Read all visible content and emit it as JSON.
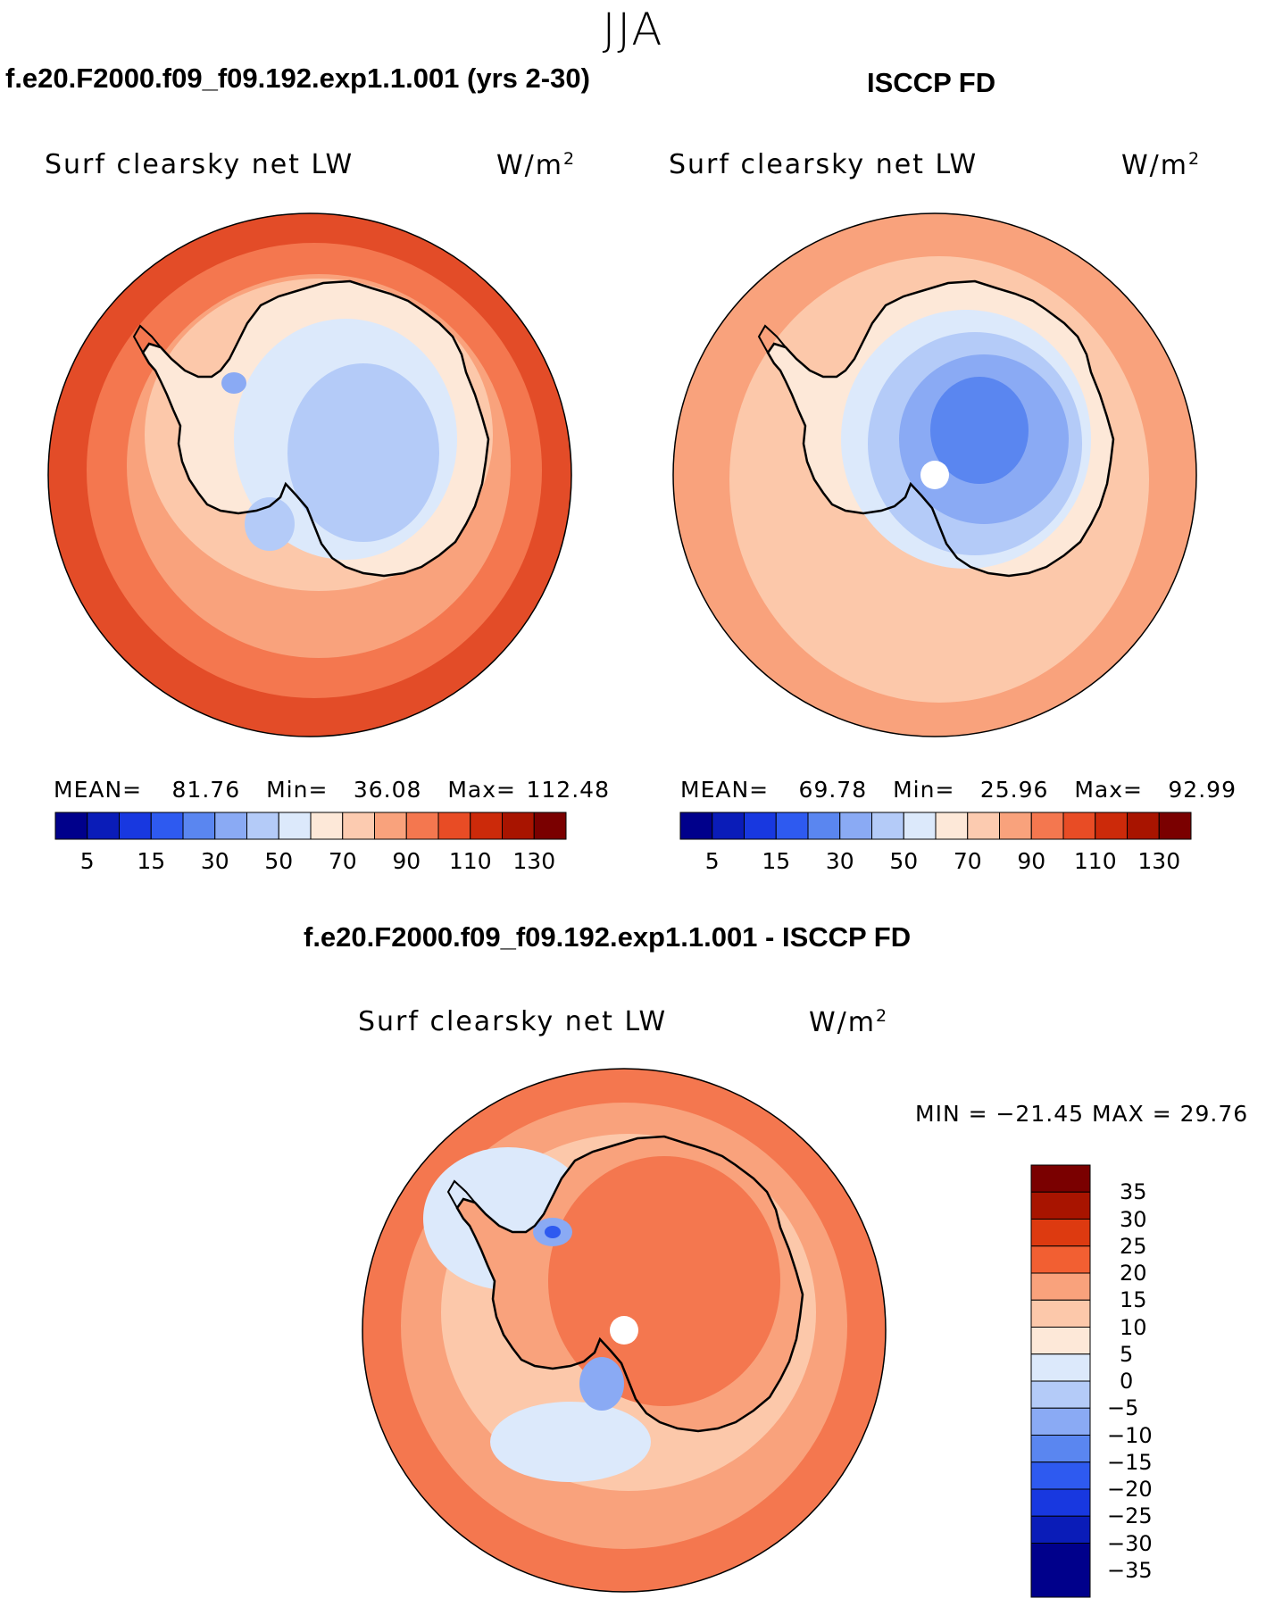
{
  "season": "JJA",
  "panels": [
    {
      "title": "f.e20.F2000.f09_f09.192.exp1.1.001 (yrs 2-30)",
      "variable": "Surf clearsky net LW",
      "units": "W/m",
      "units_exp": "2",
      "mean_label": "MEAN=",
      "mean": "81.76",
      "min_label": "Min=",
      "min": "36.08",
      "max_label": "Max=",
      "max": "112.48"
    },
    {
      "title": "ISCCP FD",
      "variable": "Surf clearsky net LW",
      "units": "W/m",
      "units_exp": "2",
      "mean_label": "MEAN=",
      "mean": "69.78",
      "min_label": "Min=",
      "min": "25.96",
      "max_label": "Max=",
      "max": "92.99"
    },
    {
      "title": "f.e20.F2000.f09_f09.192.exp1.1.001 - ISCCP FD",
      "variable": "Surf clearsky net LW",
      "units": "W/m",
      "units_exp": "2",
      "minmax": "MIN = −21.45 MAX =   29.76"
    }
  ],
  "colorbar_h": {
    "colors": [
      "#00008b",
      "#0a1cb8",
      "#1838e0",
      "#2e5af0",
      "#5a86f0",
      "#8aaaf4",
      "#b4cbf8",
      "#dce9fb",
      "#fde8d8",
      "#fccbb0",
      "#f9a27c",
      "#f4774f",
      "#e84c25",
      "#cc2a0a",
      "#a81400",
      "#7a0000"
    ],
    "labels": [
      "5",
      "15",
      "30",
      "50",
      "70",
      "90",
      "110",
      "130"
    ]
  },
  "colorbar_v": {
    "colors": [
      "#7a0000",
      "#a81400",
      "#dd3a10",
      "#f25f32",
      "#f9a27c",
      "#fcc8aa",
      "#fde8d8",
      "#dce9fb",
      "#b4cbf8",
      "#8aaaf4",
      "#5a86f0",
      "#2e5af0",
      "#1838e0",
      "#0a1cb8",
      "#00008b"
    ],
    "labels": [
      "35",
      "30",
      "25",
      "20",
      "15",
      "10",
      "5",
      "0",
      "−5",
      "−10",
      "−15",
      "−20",
      "−25",
      "−30",
      "−35"
    ]
  },
  "map_colors": {
    "ocean_outer": "#e34c28",
    "ocean_mid": "#f4774f",
    "ocean_inner": "#f9a27c",
    "ice": "#fcc8aa",
    "ice2": "#fde8d8",
    "land_light": "#dce9fb",
    "land_mid": "#b4cbf8",
    "land_deep": "#8aaaf4",
    "land_deeper": "#5a86f0",
    "land_deepest": "#2e5af0",
    "obs_ocean": "#f9a27c",
    "obs_ocean2": "#fcc8aa",
    "diff_ocean": "#f9a27c",
    "diff_outer": "#f4774f",
    "diff_land": "#f4774f",
    "diff_land2": "#f9a27c",
    "pole": "#ffffff",
    "coast": "#000000"
  }
}
